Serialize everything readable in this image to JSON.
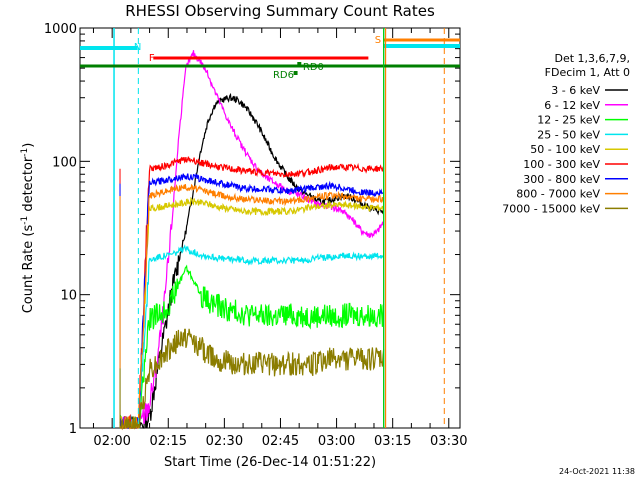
{
  "chart_data": {
    "type": "line",
    "title": "RHESSI Observing Summary Count Rates",
    "xlabel": "Start Time (26-Dec-14 01:51:22)",
    "ylabel_main": "Count Rate (s",
    "ylabel_sup": "-1",
    "ylabel_rest": " detector",
    "ylabel_end": ")",
    "y_scale": "log",
    "ylim": [
      1,
      1000
    ],
    "xlim": [
      "01:51:22",
      "03:33:00"
    ],
    "y_ticks": [
      "1",
      "10",
      "100",
      "1000"
    ],
    "x_ticks": [
      "02:00",
      "02:15",
      "02:30",
      "02:45",
      "03:00",
      "03:15",
      "03:30"
    ],
    "legend_header": [
      "Det 1,3,6,7,9,",
      "FDecim 1, Att 0"
    ],
    "footer_date": "24-Oct-2021 11:38",
    "flags": [
      {
        "label": "N",
        "color": "#00e5ee"
      },
      {
        "label": "F",
        "color": "#ff0000"
      },
      {
        "label": "S",
        "color": "#ff7f00"
      },
      {
        "label": "RD6",
        "color": "#007f00"
      },
      {
        "label": "RD0",
        "color": "#007f00"
      }
    ],
    "series": [
      {
        "name": "3 - 6 keV",
        "color": "#000000",
        "t": [
          0,
          5,
          8,
          10,
          12,
          14,
          16,
          18,
          20,
          22,
          24,
          26,
          28,
          30,
          32,
          34,
          36,
          38,
          40,
          42,
          44,
          46,
          48,
          50,
          52,
          54,
          56,
          58,
          60,
          62,
          64,
          66,
          68,
          70,
          72
        ],
        "v": [
          1,
          1,
          1.2,
          2.5,
          5,
          10,
          18,
          30,
          60,
          120,
          200,
          270,
          290,
          300,
          290,
          260,
          220,
          180,
          140,
          110,
          90,
          75,
          65,
          58,
          55,
          50,
          50,
          52,
          54,
          55,
          52,
          48,
          45,
          43,
          42
        ]
      },
      {
        "name": "6 - 12 keV",
        "color": "#ff00ff",
        "t": [
          0,
          5,
          8,
          10,
          12,
          14,
          16,
          18,
          20,
          22,
          24,
          26,
          28,
          30,
          32,
          34,
          36,
          38,
          40,
          42,
          44,
          46,
          48,
          50,
          52,
          54,
          56,
          58,
          60,
          62,
          64,
          66,
          68,
          70,
          72
        ],
        "v": [
          1,
          1,
          1.5,
          3,
          8,
          30,
          150,
          500,
          650,
          560,
          450,
          330,
          250,
          190,
          150,
          120,
          100,
          85,
          75,
          70,
          65,
          60,
          57,
          55,
          50,
          48,
          46,
          45,
          44,
          40,
          35,
          30,
          28,
          29,
          35
        ]
      },
      {
        "name": "12 - 25 keV",
        "color": "#00ff00",
        "t": [
          0,
          5,
          8,
          10,
          12,
          14,
          16,
          18,
          20,
          22,
          24,
          26,
          28,
          30,
          32,
          34,
          36,
          38,
          40,
          42,
          44,
          46,
          48,
          50,
          52,
          54,
          56,
          58,
          60,
          62,
          64,
          66,
          68,
          70,
          72
        ],
        "v": [
          1,
          1,
          6.5,
          7,
          7.5,
          9,
          12,
          16,
          13,
          10,
          9,
          8.5,
          8,
          7.5,
          7.5,
          7.2,
          7,
          7,
          6.8,
          6.8,
          7,
          7,
          7,
          7,
          6.9,
          6.9,
          7,
          6.8,
          7,
          7,
          7,
          7,
          7,
          7,
          7
        ]
      },
      {
        "name": "25 - 50 keV",
        "color": "#00e5ee",
        "t": [
          0,
          5,
          8,
          10,
          12,
          14,
          16,
          18,
          20,
          22,
          24,
          26,
          28,
          30,
          32,
          34,
          36,
          38,
          40,
          42,
          44,
          46,
          48,
          50,
          52,
          54,
          56,
          58,
          60,
          62,
          64,
          66,
          68,
          70,
          72
        ],
        "v": [
          1,
          1,
          18,
          19,
          19.5,
          20,
          21,
          22,
          21,
          20,
          19.5,
          19,
          18.5,
          18.5,
          18.5,
          18.2,
          18,
          18,
          18,
          18,
          18,
          18,
          18,
          18,
          18.5,
          19,
          19,
          19,
          19.5,
          19.5,
          19.5,
          19.5,
          19.5,
          19.5,
          19.5
        ]
      },
      {
        "name": "50 - 100 keV",
        "color": "#d7c800",
        "t": [
          0,
          5,
          8,
          10,
          12,
          14,
          16,
          18,
          20,
          22,
          24,
          26,
          28,
          30,
          32,
          34,
          36,
          38,
          40,
          42,
          44,
          46,
          48,
          50,
          52,
          54,
          56,
          58,
          60,
          62,
          64,
          66,
          68,
          70,
          72
        ],
        "v": [
          1,
          1,
          44,
          45,
          46,
          47,
          48,
          49,
          50,
          49,
          48,
          46,
          45,
          44,
          43,
          42,
          42,
          42,
          42,
          42,
          42,
          42,
          43,
          44,
          45,
          46,
          46,
          47,
          47,
          47,
          46,
          46,
          45,
          45,
          45
        ]
      },
      {
        "name": "100 - 300 keV",
        "color": "#ff0000",
        "t": [
          0,
          5,
          8,
          10,
          12,
          14,
          16,
          18,
          20,
          22,
          24,
          26,
          28,
          30,
          32,
          34,
          36,
          38,
          40,
          42,
          44,
          46,
          48,
          50,
          52,
          54,
          56,
          58,
          60,
          62,
          64,
          66,
          68,
          70,
          72
        ],
        "v": [
          1,
          1,
          88,
          90,
          92,
          96,
          100,
          104,
          102,
          98,
          95,
          92,
          90,
          88,
          86,
          85,
          84,
          83,
          82,
          81,
          80,
          80,
          81,
          82,
          84,
          86,
          88,
          90,
          90,
          90,
          89,
          88,
          88,
          88,
          88
        ]
      },
      {
        "name": "300 - 800 keV",
        "color": "#0000ff",
        "t": [
          0,
          5,
          8,
          10,
          12,
          14,
          16,
          18,
          20,
          22,
          24,
          26,
          28,
          30,
          32,
          34,
          36,
          38,
          40,
          42,
          44,
          46,
          48,
          50,
          52,
          54,
          56,
          58,
          60,
          62,
          64,
          66,
          68,
          70,
          72
        ],
        "v": [
          1,
          1,
          68,
          70,
          72,
          74,
          76,
          77,
          76,
          74,
          72,
          70,
          68,
          66,
          64,
          63,
          62,
          62,
          62,
          61,
          60,
          60,
          61,
          62,
          63,
          64,
          65,
          65,
          64,
          62,
          60,
          59,
          58,
          58,
          58
        ]
      },
      {
        "name": "800 - 7000 keV",
        "color": "#ff7f00",
        "t": [
          0,
          5,
          8,
          10,
          12,
          14,
          16,
          18,
          20,
          22,
          24,
          26,
          28,
          30,
          32,
          34,
          36,
          38,
          40,
          42,
          44,
          46,
          48,
          50,
          52,
          54,
          56,
          58,
          60,
          62,
          64,
          66,
          68,
          70,
          72
        ],
        "v": [
          1,
          1,
          55,
          57,
          59,
          61,
          63,
          64,
          63,
          61,
          59,
          57,
          55,
          54,
          53,
          52,
          52,
          51,
          51,
          50,
          50,
          50,
          51,
          52,
          53,
          54,
          55,
          55,
          55,
          54,
          53,
          52,
          52,
          52,
          52
        ]
      },
      {
        "name": "7000 - 15000 keV",
        "color": "#8b7d00",
        "t": [
          0,
          5,
          8,
          10,
          12,
          14,
          16,
          18,
          20,
          22,
          24,
          26,
          28,
          30,
          32,
          34,
          36,
          38,
          40,
          42,
          44,
          46,
          48,
          50,
          52,
          54,
          56,
          58,
          60,
          62,
          64,
          66,
          68,
          70,
          72
        ],
        "v": [
          1,
          1,
          2.8,
          3,
          3.5,
          4,
          4.5,
          4.8,
          4.5,
          4,
          3.6,
          3.4,
          3.2,
          3.1,
          3,
          3,
          3,
          3,
          3,
          3,
          3,
          3,
          3,
          3,
          3,
          3.1,
          3.2,
          3.3,
          3.3,
          3.3,
          3.3,
          3.3,
          3.3,
          3.3,
          3.3
        ]
      }
    ]
  }
}
